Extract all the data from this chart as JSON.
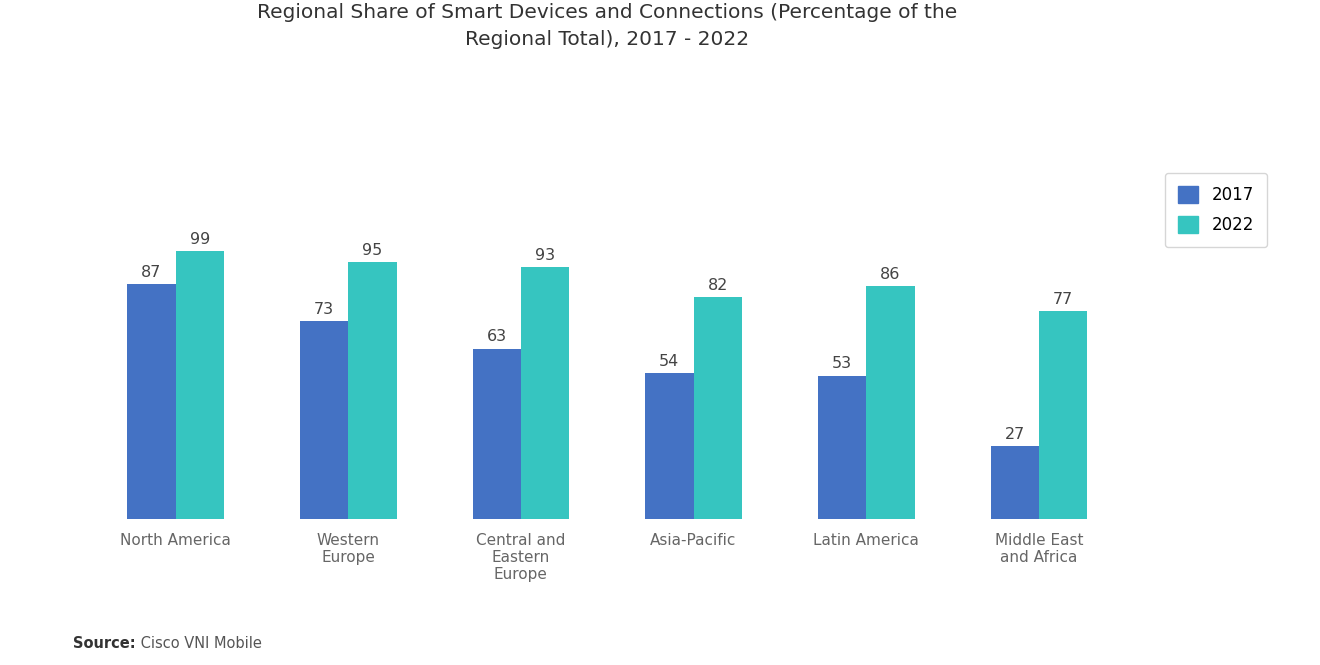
{
  "title": "Regional Share of Smart Devices and Connections (Percentage of the\nRegional Total), 2017 - 2022",
  "categories": [
    "North America",
    "Western\nEurope",
    "Central and\nEastern\nEurope",
    "Asia-Pacific",
    "Latin America",
    "Middle East\nand Africa"
  ],
  "values_2017": [
    87,
    73,
    63,
    54,
    53,
    27
  ],
  "values_2022": [
    99,
    95,
    93,
    82,
    86,
    77
  ],
  "color_2017": "#4472c4",
  "color_2022": "#36c5c0",
  "legend_labels": [
    "2017",
    "2022"
  ],
  "source_label": "Source:",
  "source_text": " Cisco VNI Mobile",
  "bar_width": 0.28,
  "ylim": [
    0,
    160
  ],
  "title_fontsize": 14.5,
  "label_fontsize": 12,
  "tick_fontsize": 11,
  "annotation_fontsize": 11.5,
  "background_color": "#ffffff"
}
